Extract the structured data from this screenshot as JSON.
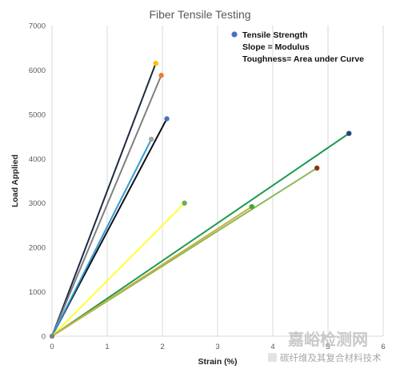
{
  "chart_data": {
    "type": "line",
    "title": "Fiber Tensile Testing",
    "xlabel": "Strain (%)",
    "ylabel": "Load Applied",
    "xlim": [
      0,
      6
    ],
    "ylim": [
      0,
      7000
    ],
    "xticks": [
      "0",
      "1",
      "2",
      "3",
      "4",
      "5",
      "6"
    ],
    "yticks": [
      "0",
      "1000",
      "2000",
      "3000",
      "4000",
      "5000",
      "6000",
      "7000"
    ],
    "grid": {
      "vertical": true,
      "horizontal": false
    },
    "legend": {
      "placement": "top-right",
      "marker_label": "Tensile Strength",
      "notes": [
        "Slope = Modulus",
        "Toughness= Area under Curve"
      ],
      "marker_color": "#4472C4"
    },
    "series": [
      {
        "color": "#1F2A44",
        "x": [
          0,
          1.88
        ],
        "y": [
          0,
          6150
        ],
        "end_color": "#FFC000"
      },
      {
        "color": "#7F7F7F",
        "x": [
          0,
          1.98
        ],
        "y": [
          0,
          5880
        ],
        "end_color": "#ED7D31"
      },
      {
        "color": "#111111",
        "x": [
          0,
          2.08
        ],
        "y": [
          0,
          4900
        ],
        "end_color": "#4472C4"
      },
      {
        "color": "#2E9BD6",
        "x": [
          0,
          1.8
        ],
        "y": [
          0,
          4440
        ],
        "end_color": "#A5A5A5"
      },
      {
        "color": "#FFFF33",
        "x": [
          0,
          2.4
        ],
        "y": [
          0,
          3000
        ],
        "end_color": "#70AD47"
      },
      {
        "color": "#1A9950",
        "x": [
          0,
          5.38
        ],
        "y": [
          0,
          4570
        ],
        "end_color": "#264478"
      },
      {
        "color": "#8CB85A",
        "x": [
          0,
          4.8
        ],
        "y": [
          0,
          3790
        ],
        "end_color": "#843C0C"
      },
      {
        "color": "#C9B040",
        "x": [
          0,
          3.62
        ],
        "y": [
          0,
          2920
        ],
        "end_color": "#43A82F"
      }
    ]
  },
  "watermark": {
    "main": "嘉峪检测网",
    "sub": "碳纤维及其复合材料技术"
  }
}
